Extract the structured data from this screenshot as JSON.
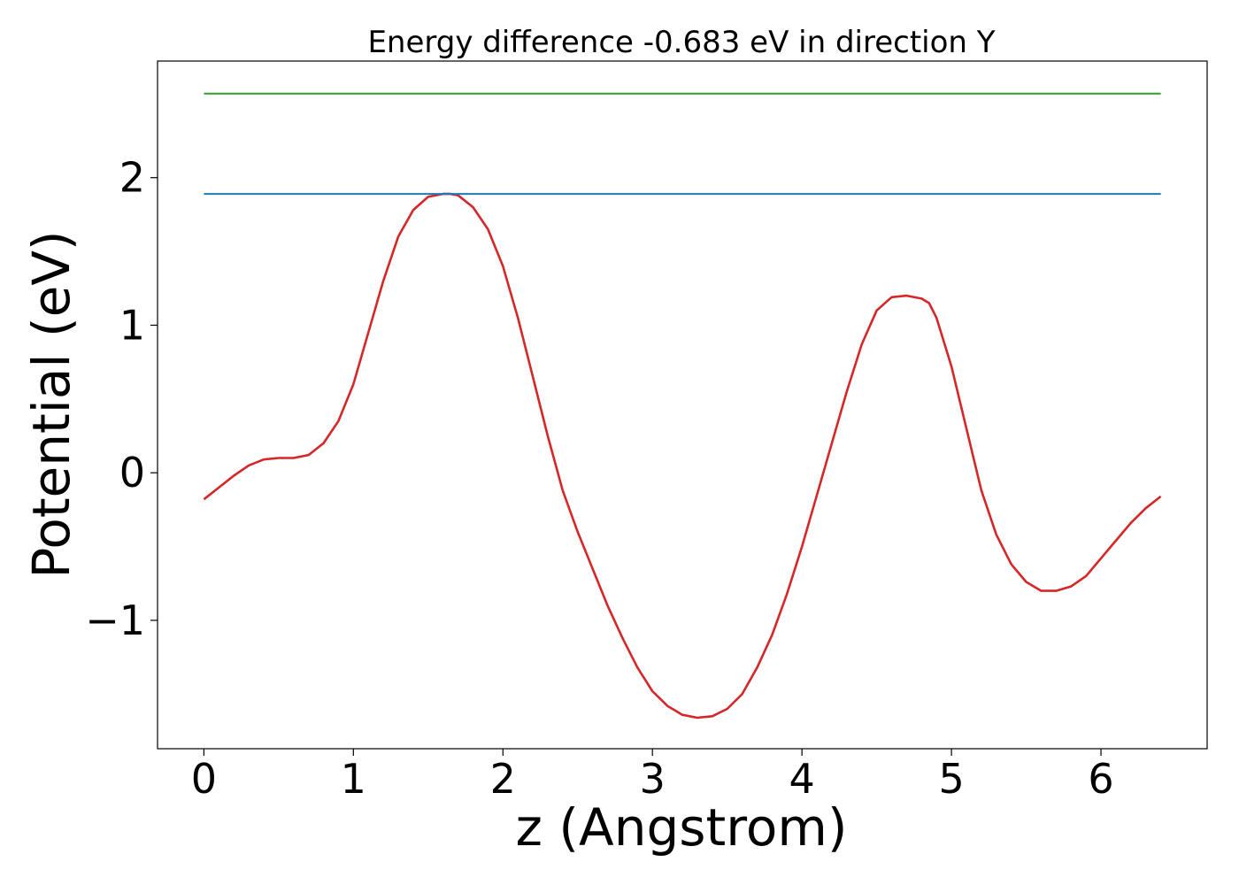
{
  "chart_data": {
    "type": "line",
    "title": "Energy difference -0.683 eV in direction Y",
    "xlabel": "z (Angstrom)",
    "ylabel": "Potential (eV)",
    "xlim": [
      -0.31,
      6.71
    ],
    "ylim": [
      -1.87,
      2.79
    ],
    "xticks": [
      0,
      1,
      2,
      3,
      4,
      5,
      6
    ],
    "xtick_labels": [
      "0",
      "1",
      "2",
      "3",
      "4",
      "5",
      "6"
    ],
    "yticks": [
      -1,
      0,
      1,
      2
    ],
    "ytick_labels": [
      "−1",
      "0",
      "1",
      "2"
    ],
    "grid": false,
    "series": [
      {
        "color": "#d62728",
        "x": [
          0,
          0.1,
          0.2,
          0.3,
          0.4,
          0.5,
          0.6,
          0.7,
          0.8,
          0.9,
          1.0,
          1.1,
          1.2,
          1.3,
          1.4,
          1.5,
          1.6,
          1.65,
          1.7,
          1.8,
          1.9,
          2.0,
          2.1,
          2.2,
          2.3,
          2.4,
          2.5,
          2.6,
          2.7,
          2.8,
          2.9,
          3.0,
          3.1,
          3.2,
          3.3,
          3.4,
          3.5,
          3.6,
          3.7,
          3.8,
          3.9,
          4.0,
          4.1,
          4.2,
          4.3,
          4.4,
          4.5,
          4.6,
          4.7,
          4.8,
          4.85,
          4.9,
          5.0,
          5.1,
          5.2,
          5.3,
          5.4,
          5.5,
          5.6,
          5.7,
          5.8,
          5.9,
          6.0,
          6.1,
          6.2,
          6.3,
          6.4
        ],
        "y": [
          -0.18,
          -0.1,
          -0.02,
          0.05,
          0.09,
          0.1,
          0.1,
          0.12,
          0.2,
          0.35,
          0.6,
          0.95,
          1.3,
          1.6,
          1.78,
          1.87,
          1.89,
          1.89,
          1.88,
          1.8,
          1.65,
          1.4,
          1.05,
          0.65,
          0.25,
          -0.12,
          -0.4,
          -0.65,
          -0.9,
          -1.12,
          -1.32,
          -1.48,
          -1.58,
          -1.64,
          -1.66,
          -1.65,
          -1.6,
          -1.5,
          -1.32,
          -1.1,
          -0.82,
          -0.5,
          -0.15,
          0.2,
          0.55,
          0.87,
          1.1,
          1.19,
          1.2,
          1.18,
          1.15,
          1.05,
          0.72,
          0.3,
          -0.12,
          -0.42,
          -0.62,
          -0.74,
          -0.8,
          -0.8,
          -0.77,
          -0.7,
          -0.58,
          -0.46,
          -0.34,
          -0.24,
          -0.16
        ]
      },
      {
        "color": "#1f77b4",
        "x": [
          0,
          6.4
        ],
        "y": [
          1.89,
          1.89
        ]
      },
      {
        "color": "#2ca02c",
        "x": [
          0,
          6.4
        ],
        "y": [
          2.57,
          2.57
        ]
      }
    ]
  }
}
